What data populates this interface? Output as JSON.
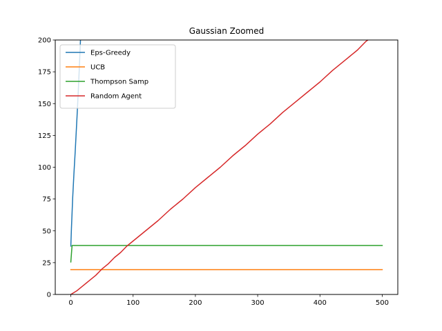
{
  "chart_data": {
    "type": "line",
    "title": "Gaussian Zoomed",
    "xlabel": "",
    "ylabel": "",
    "xlim": [
      -25,
      525
    ],
    "ylim": [
      0,
      200
    ],
    "x_ticks": [
      0,
      100,
      200,
      300,
      400,
      500
    ],
    "y_ticks": [
      0,
      25,
      50,
      75,
      100,
      125,
      150,
      175,
      200
    ],
    "grid": false,
    "legend_position": "top-left",
    "series": [
      {
        "name": "Eps-Greedy",
        "color": "#1f77b4",
        "points": [
          [
            0,
            38
          ],
          [
            1,
            52
          ],
          [
            2,
            64
          ],
          [
            3,
            76
          ],
          [
            5,
            95
          ],
          [
            7,
            112
          ],
          [
            10,
            140
          ],
          [
            12,
            160
          ],
          [
            14,
            182
          ],
          [
            15.5,
            200
          ],
          [
            16,
            210
          ]
        ]
      },
      {
        "name": "UCB",
        "color": "#ff7f0e",
        "points": [
          [
            0,
            19.5
          ],
          [
            500,
            19.5
          ]
        ]
      },
      {
        "name": "Thompson Samp",
        "color": "#2ca02c",
        "points": [
          [
            0,
            25.5
          ],
          [
            1,
            32
          ],
          [
            2,
            38.5
          ],
          [
            500,
            38.5
          ]
        ]
      },
      {
        "name": "Random Agent",
        "color": "#d62728",
        "points": [
          [
            0,
            0
          ],
          [
            10,
            3
          ],
          [
            20,
            7
          ],
          [
            30,
            11
          ],
          [
            40,
            15
          ],
          [
            50,
            20
          ],
          [
            60,
            24
          ],
          [
            70,
            29
          ],
          [
            80,
            33
          ],
          [
            90,
            38
          ],
          [
            100,
            42
          ],
          [
            120,
            50
          ],
          [
            140,
            58
          ],
          [
            160,
            67
          ],
          [
            180,
            75
          ],
          [
            200,
            84
          ],
          [
            220,
            92
          ],
          [
            240,
            100
          ],
          [
            260,
            109
          ],
          [
            280,
            117
          ],
          [
            300,
            126
          ],
          [
            320,
            134
          ],
          [
            340,
            143
          ],
          [
            360,
            151
          ],
          [
            380,
            159
          ],
          [
            400,
            167
          ],
          [
            420,
            176
          ],
          [
            440,
            184
          ],
          [
            460,
            192
          ],
          [
            474,
            199
          ],
          [
            480,
            201
          ]
        ]
      }
    ]
  }
}
